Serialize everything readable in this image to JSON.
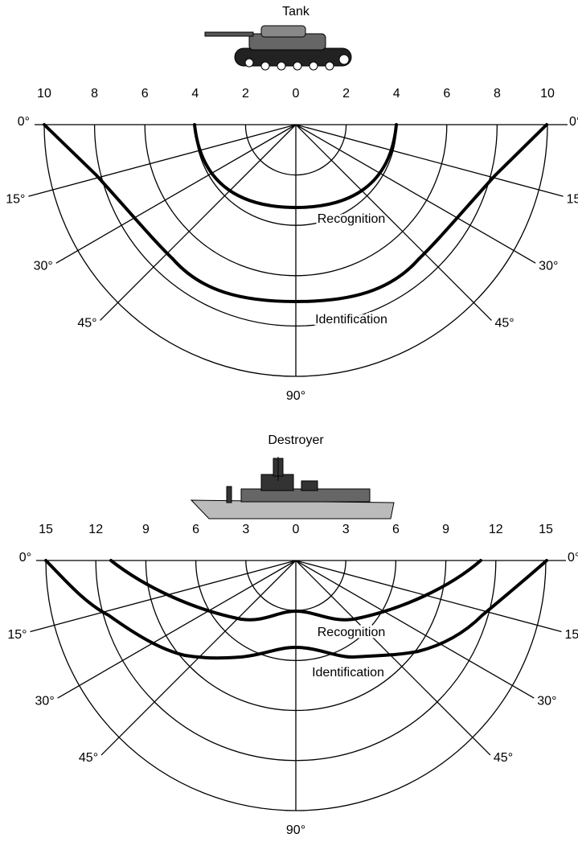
{
  "panels": [
    {
      "title": "Tank",
      "range_labels": [
        "10",
        "8",
        "6",
        "4",
        "2",
        "0",
        "2",
        "4",
        "6",
        "8",
        "10"
      ],
      "angle_labels": [
        "0°",
        "15°",
        "30°",
        "45°",
        "90°"
      ],
      "curve_labels": [
        "Recognition",
        "Identification"
      ]
    },
    {
      "title": "Destroyer",
      "range_labels": [
        "15",
        "12",
        "9",
        "6",
        "3",
        "0",
        "3",
        "6",
        "9",
        "12",
        "15"
      ],
      "angle_labels": [
        "0°",
        "15°",
        "30°",
        "45°",
        "90°"
      ],
      "curve_labels": [
        "Recognition",
        "Identification"
      ]
    }
  ]
}
